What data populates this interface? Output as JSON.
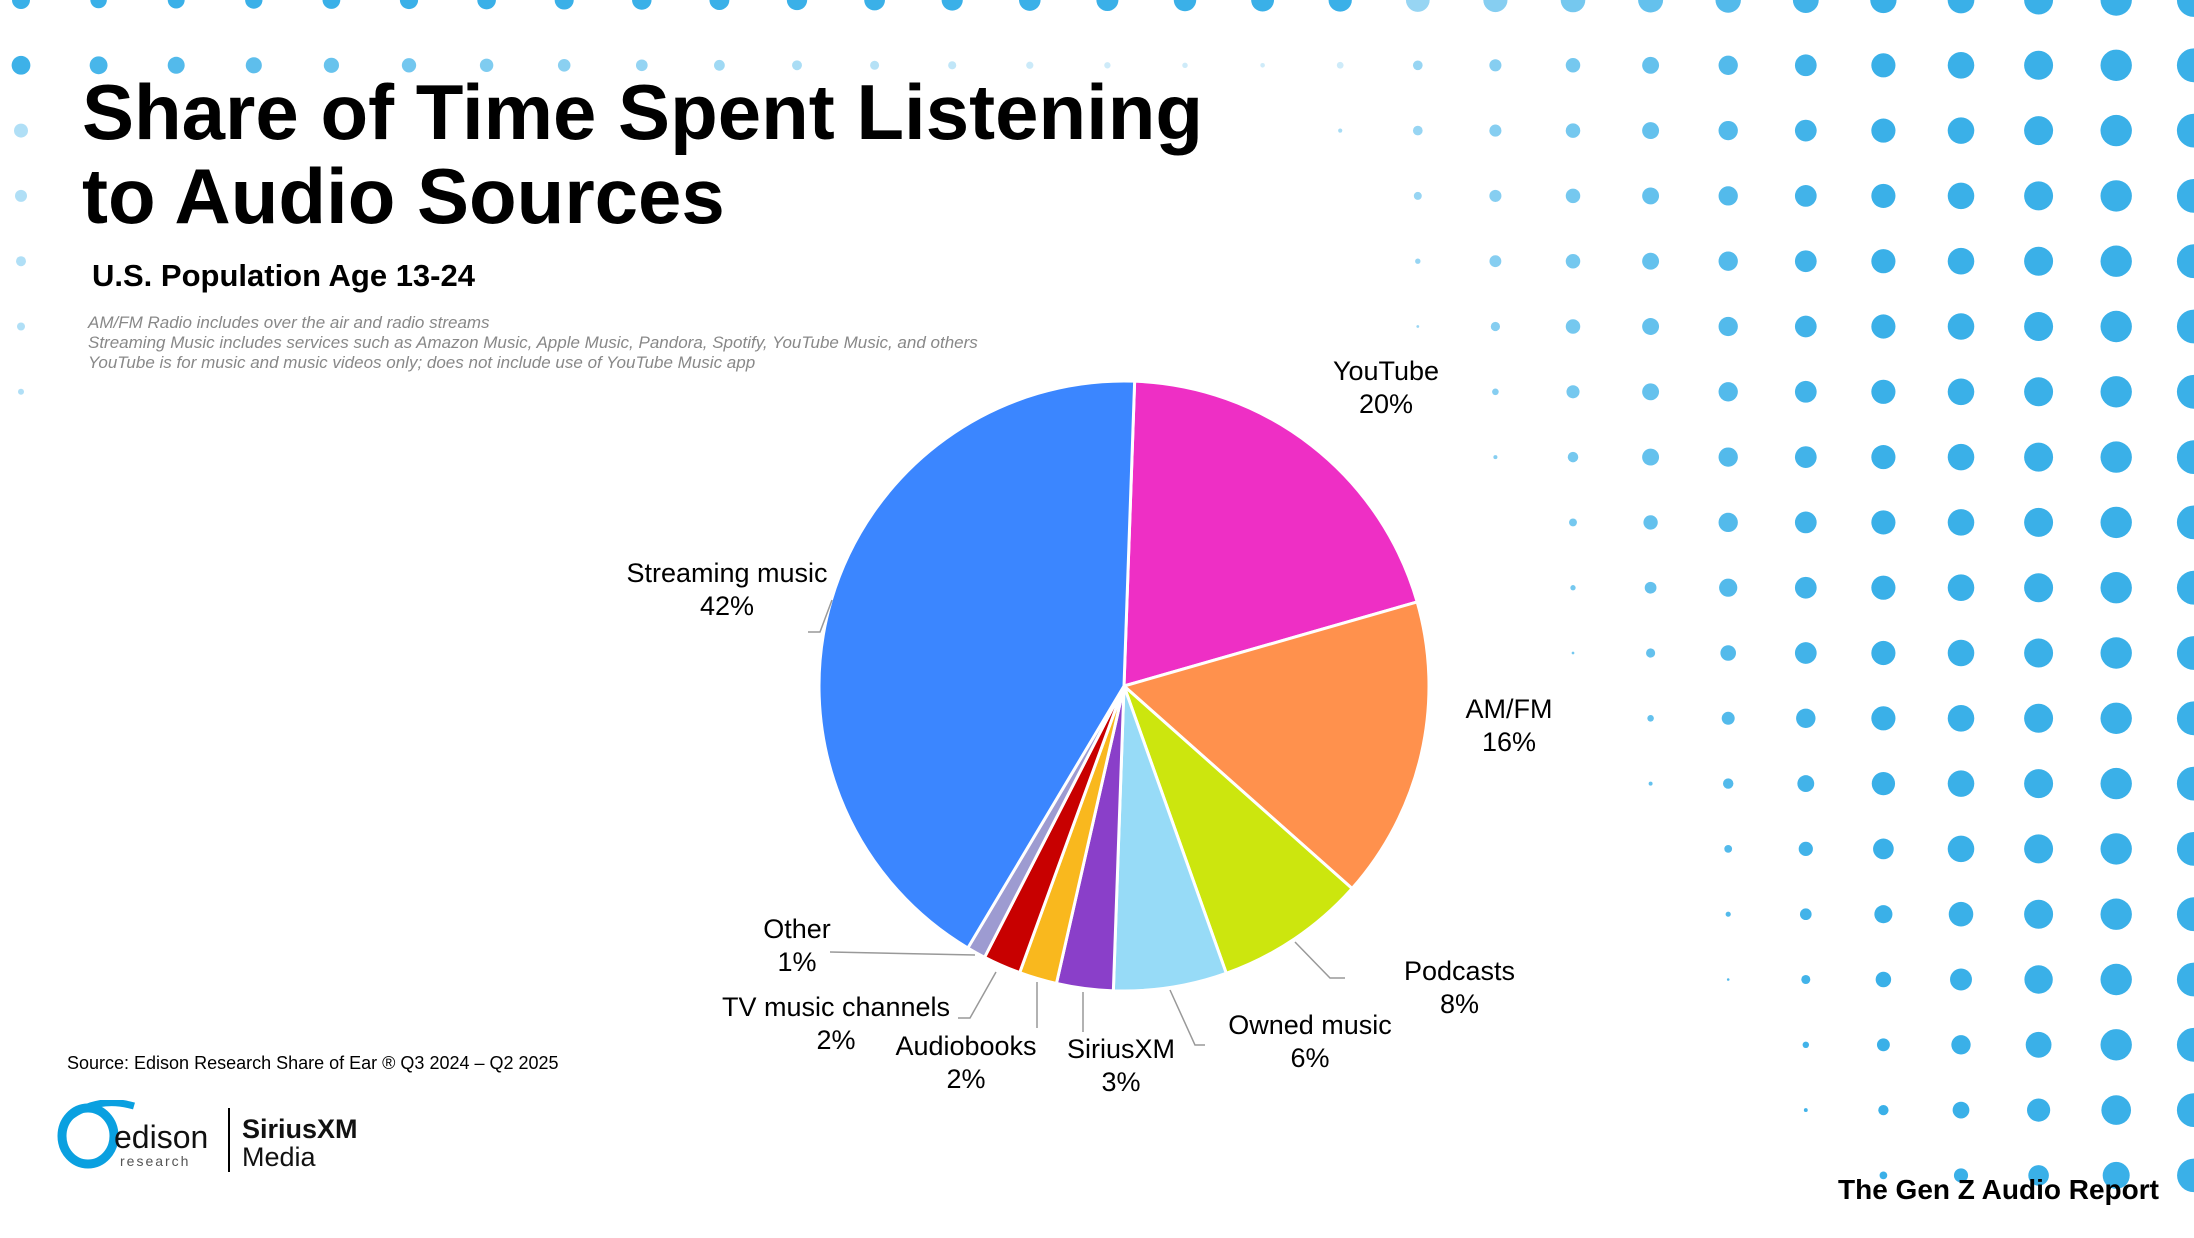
{
  "title_line1": "Share of Time Spent Listening",
  "title_line2": "to Audio Sources",
  "subtitle": "U.S. Population Age 13-24",
  "notes": [
    "AM/FM Radio includes over the air and radio streams",
    "Streaming Music includes services such as Amazon Music, Apple Music, Pandora, Spotify, YouTube Music, and others",
    "YouTube is for music and music videos only; does not include use of YouTube Music app"
  ],
  "source": "Source: Edison Research Share of Ear ® Q3 2024 – Q2 2025",
  "footer": "The Gen Z Audio Report",
  "logos": {
    "edison": "edison research",
    "siriusxm": "SiriusXM Media"
  },
  "accent_dot_color": "#3AB0E8",
  "chart_data": {
    "type": "pie",
    "title": "Share of Time Spent Listening to Audio Sources",
    "unit": "%",
    "direction": "clockwise from top",
    "slices": [
      {
        "label": "YouTube",
        "value": 20,
        "display": "20%",
        "color": "#EE2FC5"
      },
      {
        "label": "AM/FM",
        "value": 16,
        "display": "16%",
        "color": "#FF914D"
      },
      {
        "label": "Podcasts",
        "value": 8,
        "display": "8%",
        "color": "#CCE60E"
      },
      {
        "label": "Owned music",
        "value": 6,
        "display": "6%",
        "color": "#97DBF7"
      },
      {
        "label": "SiriusXM",
        "value": 3,
        "display": "3%",
        "color": "#8A3FC9"
      },
      {
        "label": "Audiobooks",
        "value": 2,
        "display": "2%",
        "color": "#F9B81E"
      },
      {
        "label": "TV music channels",
        "value": 2,
        "display": "2%",
        "color": "#C80000"
      },
      {
        "label": "Other",
        "value": 1,
        "display": "1%",
        "color": "#9D9BD1"
      },
      {
        "label": "Streaming music",
        "value": 42,
        "display": "42%",
        "color": "#3B86FF"
      }
    ]
  }
}
